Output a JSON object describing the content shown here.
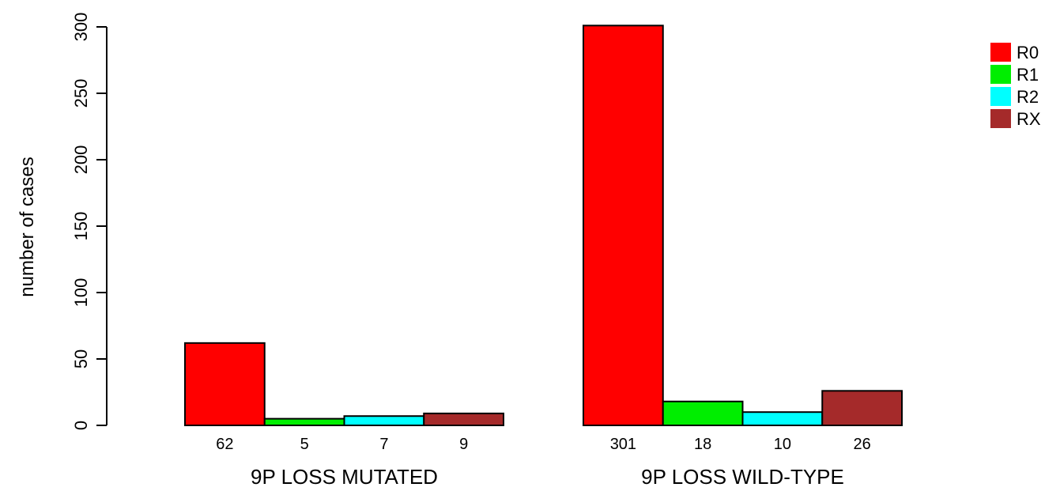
{
  "chart_data": {
    "type": "bar",
    "ylabel": "number of cases",
    "xlabel": "",
    "ylim": [
      0,
      300
    ],
    "yticks": [
      0,
      50,
      100,
      150,
      200,
      250,
      300
    ],
    "groups": [
      "9P LOSS MUTATED",
      "9P LOSS WILD-TYPE"
    ],
    "series": [
      {
        "name": "R0",
        "color": "#ff0000",
        "values": [
          62,
          301
        ]
      },
      {
        "name": "R1",
        "color": "#00ee00",
        "values": [
          5,
          18
        ]
      },
      {
        "name": "R2",
        "color": "#00ffff",
        "values": [
          7,
          10
        ]
      },
      {
        "name": "RX",
        "color": "#a52a2a",
        "values": [
          9,
          26
        ]
      }
    ],
    "bar_labels": [
      [
        "62",
        "5",
        "7",
        "9"
      ],
      [
        "301",
        "18",
        "10",
        "26"
      ]
    ],
    "legend_position": "top-right",
    "grid": false
  }
}
